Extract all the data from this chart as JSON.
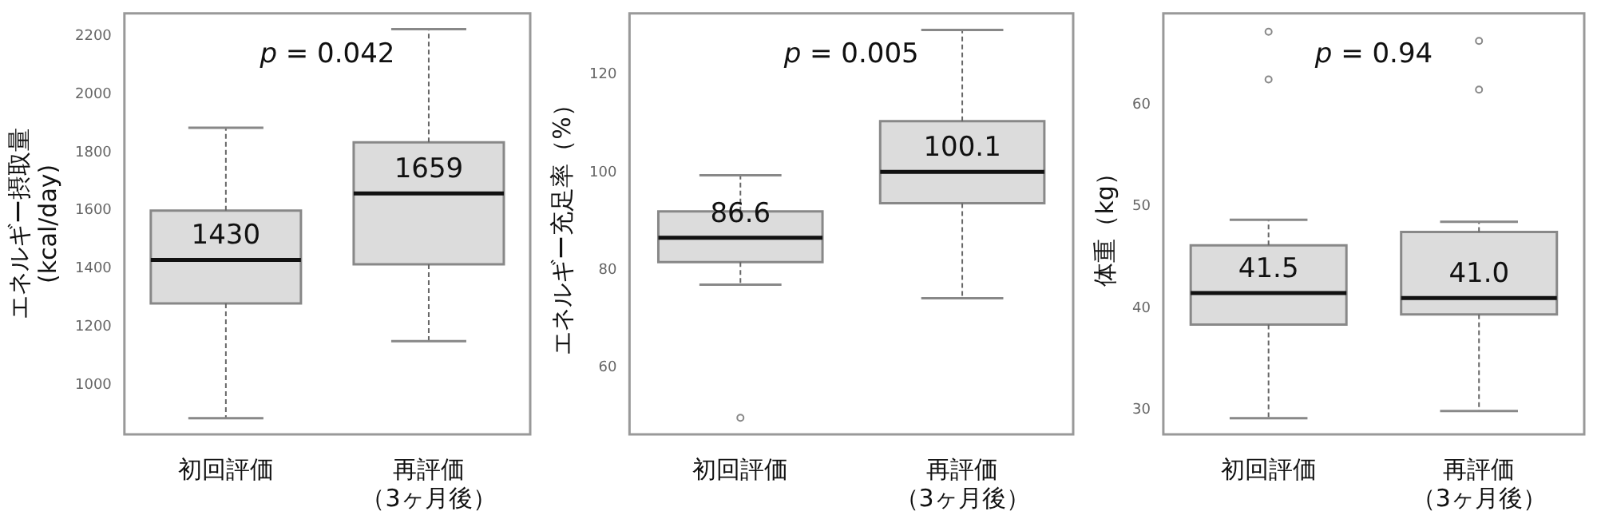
{
  "chart_data": [
    {
      "type": "box",
      "categories": [
        "初回評価",
        "再評価（3ヶ月後）"
      ],
      "ylabel": "エネルギー摂取量\n(kcal/day)",
      "ylim": [
        829,
        2279
      ],
      "yticks": [
        1000,
        1200,
        1400,
        1600,
        1800,
        2000,
        2200
      ],
      "grid": false,
      "legend": false,
      "color": "#dcdcdc",
      "annotations": [
        "p = 0.042"
      ],
      "value_labels": [
        "1430",
        "1659"
      ],
      "boxes": [
        {
          "low": 885,
          "q1": 1280,
          "median": 1430,
          "q3": 1600,
          "high": 1885
        },
        {
          "low": 1150,
          "q1": 1415,
          "median": 1659,
          "q3": 1835,
          "high": 2225
        }
      ]
    },
    {
      "type": "box",
      "categories": [
        "初回評価",
        "再評価（3ヶ月後）"
      ],
      "ylabel": "エネルギー充足率（%）",
      "ylim": [
        46.3,
        132.6
      ],
      "yticks": [
        60,
        80,
        100,
        120
      ],
      "grid": false,
      "legend": false,
      "color": "#dcdcdc",
      "annotations": [
        "p = 0.005"
      ],
      "value_labels": [
        "86.6",
        "100.1"
      ],
      "boxes": [
        {
          "low": 77,
          "q1": 81.6,
          "median": 86.6,
          "q3": 92,
          "high": 99.4,
          "outliers": [
            49.7
          ]
        },
        {
          "low": 74.2,
          "q1": 93.7,
          "median": 100.1,
          "q3": 110.5,
          "high": 129.2
        }
      ]
    },
    {
      "type": "box",
      "categories": [
        "初回評価",
        "再評価（3ヶ月後）"
      ],
      "ylabel": "体重（kg）",
      "ylim": [
        27.6,
        69
      ],
      "yticks": [
        30,
        40,
        50,
        60
      ],
      "grid": false,
      "legend": false,
      "color": "#dcdcdc",
      "annotations": [
        "p = 0.94"
      ],
      "value_labels": [
        "41.5",
        "41.0"
      ],
      "boxes": [
        {
          "low": 29.2,
          "q1": 38.4,
          "median": 41.5,
          "q3": 46.2,
          "high": 48.7,
          "outliers": [
            67.2,
            62.5
          ]
        },
        {
          "low": 29.9,
          "q1": 39.4,
          "median": 41.0,
          "q3": 47.5,
          "high": 48.5,
          "outliers": [
            66.3,
            61.5
          ]
        }
      ]
    }
  ]
}
